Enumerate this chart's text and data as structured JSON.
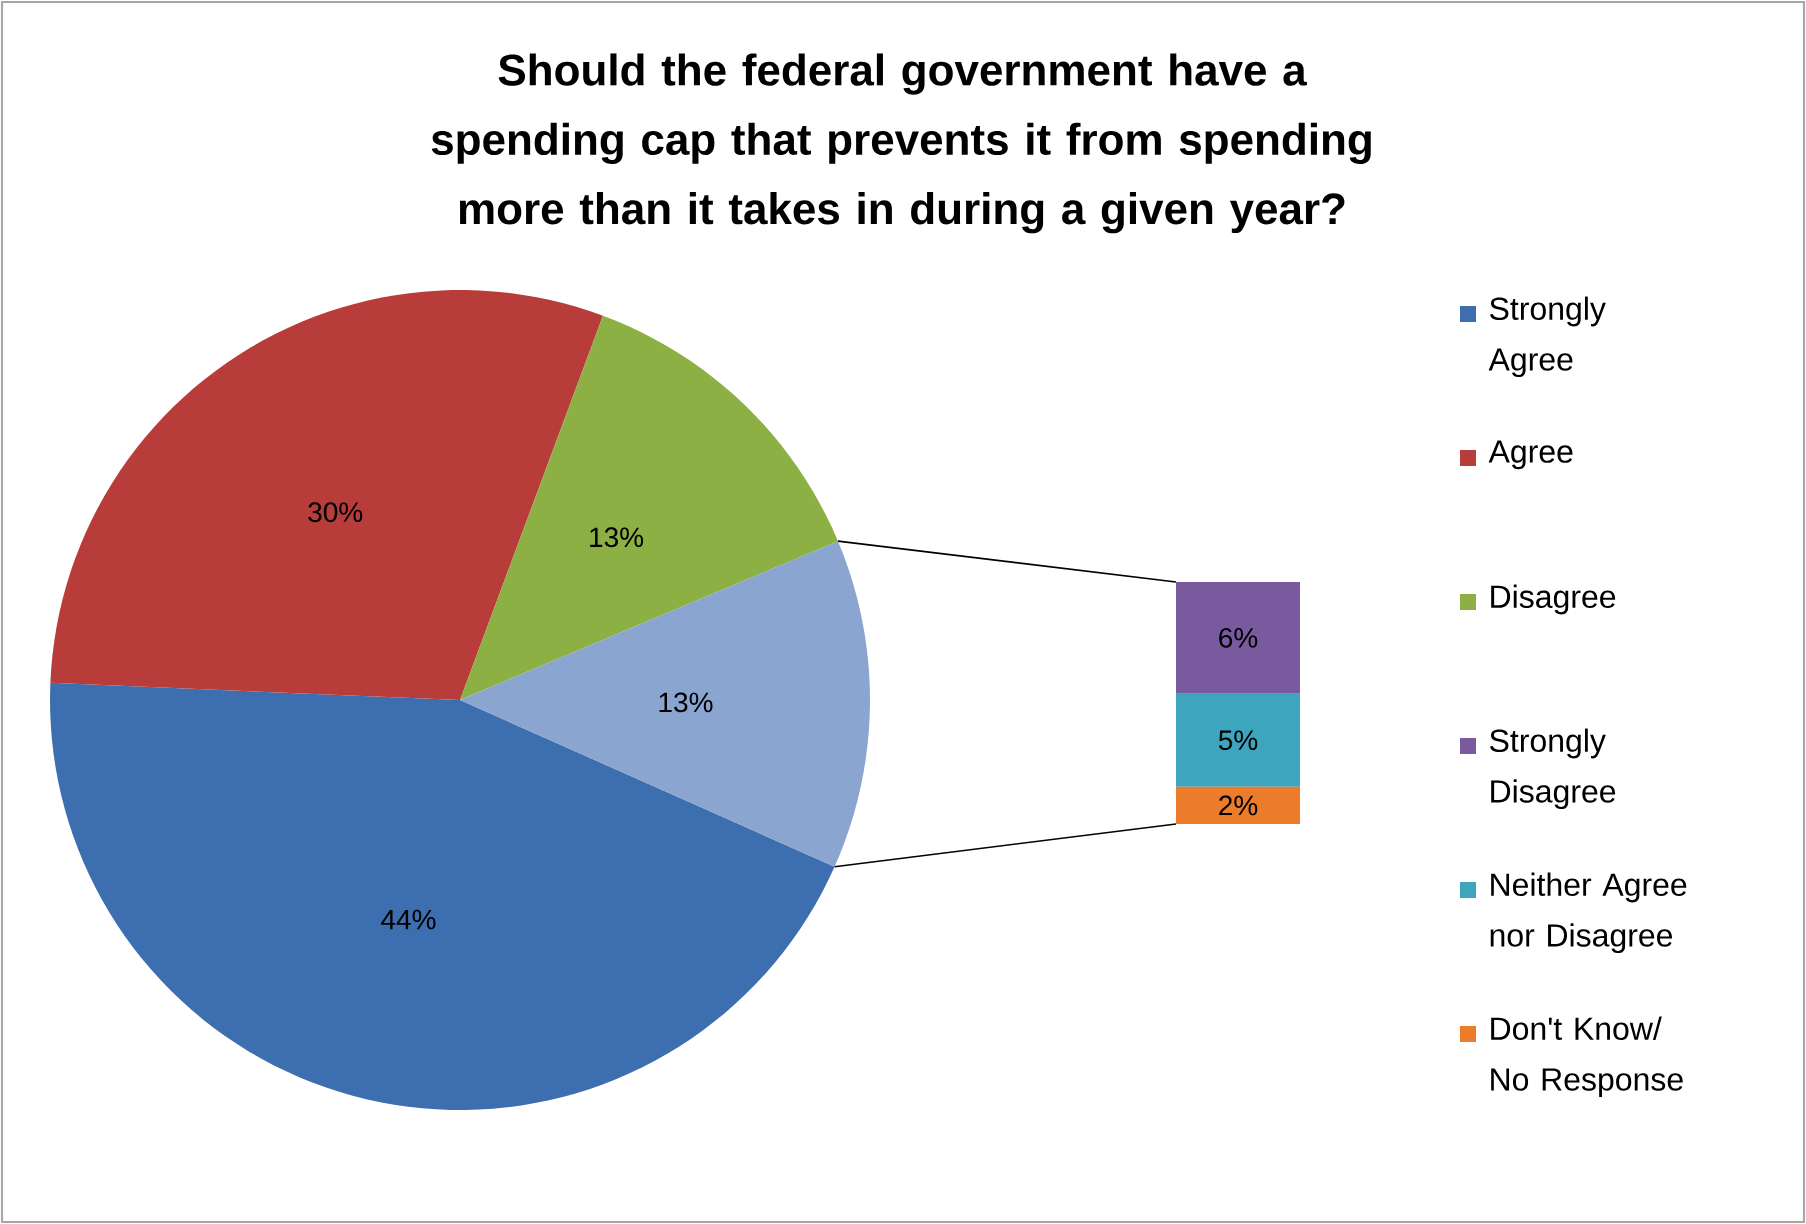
{
  "chart_data": [
    {
      "type": "pie",
      "title": "Should the federal government have a spending cap that prevents it from spending more than it takes in during a given year?",
      "categories": [
        "Strongly Agree",
        "Agree",
        "Disagree",
        null
      ],
      "values": [
        44,
        30,
        13,
        13
      ],
      "colors": [
        "#3d6eb0",
        "#b83c39",
        "#8cb043",
        "#8aa5cf"
      ],
      "value_labels": [
        "44%",
        "30%",
        "13%",
        "13%"
      ],
      "legend": "right"
    },
    {
      "type": "bar",
      "stacked": true,
      "categories": [
        null
      ],
      "series": [
        {
          "name": "Don't Know/ No Response",
          "color": "#ec7c2a",
          "values": [
            2
          ],
          "value_labels": [
            "2%"
          ]
        },
        {
          "name": "Neither Agree nor Disagree",
          "color": "#3ea5be",
          "values": [
            5
          ],
          "value_labels": [
            "5%"
          ]
        },
        {
          "name": "Strongly Disagree",
          "color": "#7a5a9e",
          "values": [
            6
          ],
          "value_labels": [
            "6%"
          ]
        }
      ],
      "legend": "right"
    }
  ]
}
